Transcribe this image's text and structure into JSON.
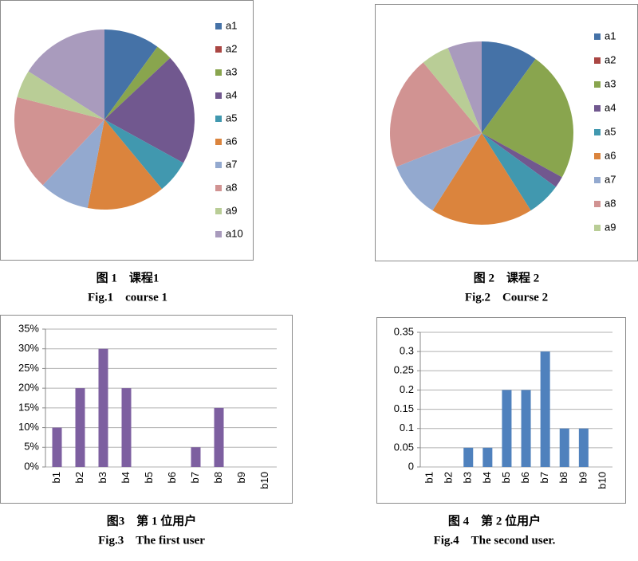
{
  "chart_data": [
    {
      "type": "pie",
      "categories": [
        "a1",
        "a2",
        "a3",
        "a4",
        "a5",
        "a6",
        "a7",
        "a8",
        "a9",
        "a10"
      ],
      "values": [
        10,
        0,
        3,
        20,
        6,
        14,
        9,
        17,
        5,
        16
      ],
      "colors": [
        "#4572A7",
        "#AA4643",
        "#89A54E",
        "#71588F",
        "#4198AF",
        "#DB843D",
        "#93A9CF",
        "#D19392",
        "#B9CD96",
        "#A99BBD"
      ],
      "caption_zh": "图 1　课程1",
      "caption_en": "Fig.1　course 1",
      "legend": "right"
    },
    {
      "type": "pie",
      "categories": [
        "a1",
        "a2",
        "a3",
        "a4",
        "a5",
        "a6",
        "a7",
        "a8",
        "a9",
        null
      ],
      "values": [
        10,
        0,
        23,
        2,
        6,
        18,
        10,
        20,
        5,
        6
      ],
      "colors": [
        "#4572A7",
        "#AA4643",
        "#89A54E",
        "#71588F",
        "#4198AF",
        "#DB843D",
        "#93A9CF",
        "#D19392",
        "#B9CD96",
        "#A99BBD"
      ],
      "caption_zh": "图 2　课程 2",
      "caption_en": "Fig.2　Course 2",
      "legend": "right"
    },
    {
      "type": "bar",
      "categories": [
        "b1",
        "b2",
        "b3",
        "b4",
        "b5",
        "b6",
        "b7",
        "b8",
        "b9",
        "b10"
      ],
      "values": [
        10,
        20,
        30,
        20,
        0,
        0,
        5,
        15,
        0,
        0
      ],
      "color": "#7D5FA0",
      "ylim": [
        0,
        35
      ],
      "yticks": [
        {
          "value": 0,
          "label": "0%"
        },
        {
          "value": 5,
          "label": "5%"
        },
        {
          "value": 10,
          "label": "10%"
        },
        {
          "value": 15,
          "label": "15%"
        },
        {
          "value": 20,
          "label": "20%"
        },
        {
          "value": 25,
          "label": "25%"
        },
        {
          "value": 30,
          "label": "30%"
        },
        {
          "value": 35,
          "label": "35%"
        }
      ],
      "grid": true,
      "caption_zh": "图3　第 1 位用户",
      "caption_en": "Fig.3　The first user"
    },
    {
      "type": "bar",
      "categories": [
        "b1",
        "b2",
        "b3",
        "b4",
        "b5",
        "b6",
        "b7",
        "b8",
        "b9",
        "b10"
      ],
      "values": [
        0,
        0,
        0.05,
        0.05,
        0.2,
        0.2,
        0.3,
        0.1,
        0.1,
        0
      ],
      "color": "#4F81BD",
      "ylim": [
        0,
        0.35
      ],
      "yticks": [
        0,
        0.05,
        0.1,
        0.15,
        0.2,
        0.25,
        0.3,
        0.35
      ],
      "grid": true,
      "caption_zh": "图 4　第 2 位用户",
      "caption_en": "Fig.4　The second user."
    }
  ]
}
